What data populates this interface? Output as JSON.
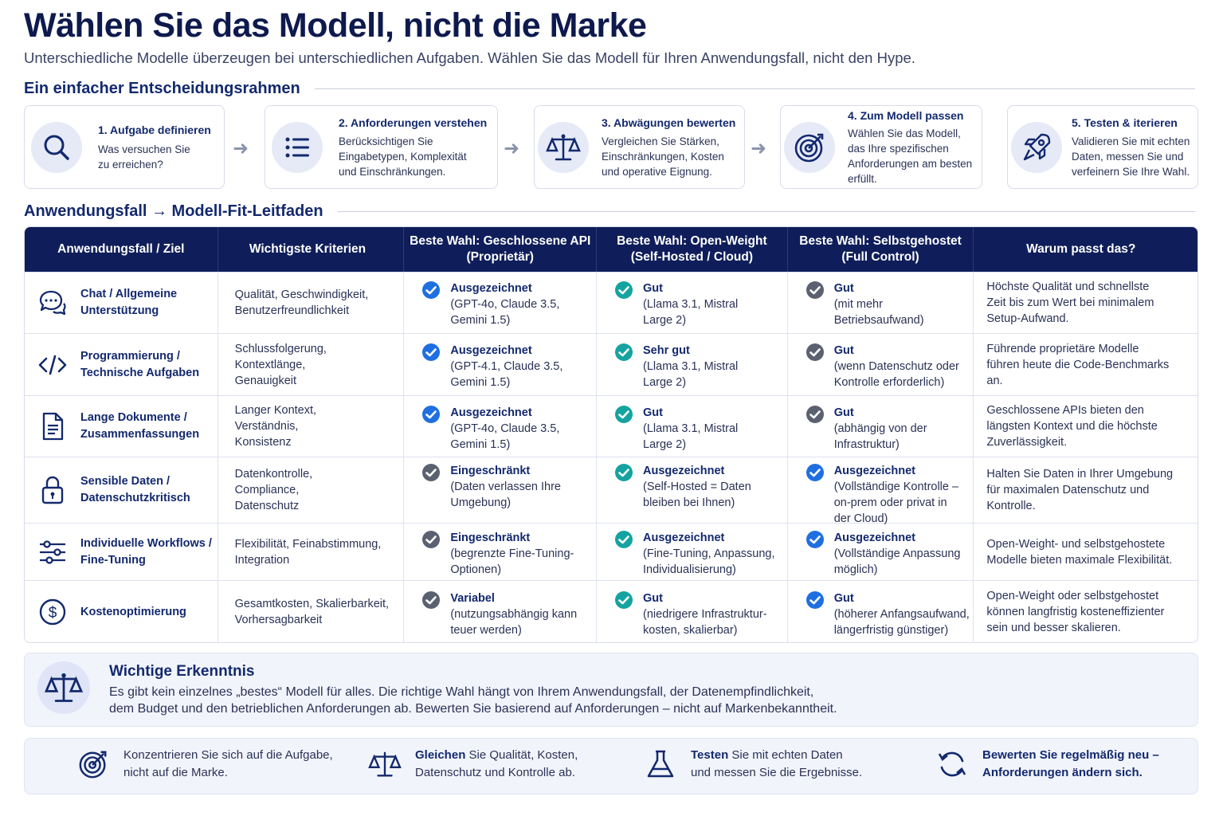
{
  "header": {
    "title": "Wählen Sie das Modell, nicht die Marke",
    "subtitle": "Unterschiedliche Modelle überzeugen bei unterschiedlichen Aufgaben. Wählen Sie das Modell für Ihren Anwendungsfall, nicht den Hype."
  },
  "framework": {
    "heading": "Ein einfacher Entscheidungsrahmen",
    "steps": [
      {
        "title": "1. Aufgabe definieren",
        "l1": "Was versuchen Sie",
        "l2": "zu erreichen?",
        "l3": "",
        "l4": "",
        "icon": "search-icon"
      },
      {
        "title": "2. Anforderungen verstehen",
        "l1": "Berücksichtigen Sie",
        "l2": "Eingabetypen, Komplexität",
        "l3": "und Einschränkungen.",
        "l4": "",
        "icon": "list-icon"
      },
      {
        "title": "3. Abwägungen bewerten",
        "l1": "Vergleichen Sie Stärken,",
        "l2": "Einschränkungen, Kosten",
        "l3": "und operative Eignung.",
        "l4": "",
        "icon": "scale-icon"
      },
      {
        "title": "4. Zum Modell passen",
        "l1": "Wählen Sie das Modell,",
        "l2": "das Ihre spezifischen",
        "l3": "Anforderungen am besten",
        "l4": "erfüllt.",
        "icon": "target-icon"
      },
      {
        "title": "5. Testen & iterieren",
        "l1": "Validieren Sie mit echten",
        "l2": "Daten, messen Sie und",
        "l3": "verfeinern Sie Ihre Wahl.",
        "l4": "",
        "icon": "rocket-icon"
      }
    ]
  },
  "guide": {
    "heading": "Anwendungsfall → Modell-Fit-Leitfaden",
    "columns": [
      {
        "l1": "Anwendungsfall / Ziel",
        "l2": ""
      },
      {
        "l1": "Wichtigste Kriterien",
        "l2": ""
      },
      {
        "l1": "Beste Wahl: Geschlossene API",
        "l2": "(Proprietär)"
      },
      {
        "l1": "Beste Wahl: Open-Weight",
        "l2": "(Self-Hosted / Cloud)"
      },
      {
        "l1": "Beste Wahl: Selbstgehostet",
        "l2": "(Full Control)"
      },
      {
        "l1": "Warum passt das?",
        "l2": ""
      }
    ],
    "rows": [
      {
        "icon": "chat-icon",
        "usecase": [
          "Chat / Allgemeine",
          "Unterstützung"
        ],
        "criteria": [
          "Qualität, Geschwindigkeit,",
          "Benutzerfreundlichkeit",
          ""
        ],
        "closed": {
          "rating": "Ausgezeichnet",
          "d1": "(GPT-4o, Claude 3.5,",
          "d2": "Gemini 1.5)",
          "d3": "",
          "style": "blue"
        },
        "open": {
          "rating": "Gut",
          "d1": "(Llama 3.1, Mistral",
          "d2": "Large 2)",
          "d3": "",
          "style": "teal"
        },
        "self": {
          "rating": "Gut",
          "d1": "(mit mehr",
          "d2": "Betriebsaufwand)",
          "d3": "",
          "style": "gray"
        },
        "why": [
          "Höchste Qualität und schnellste",
          "Zeit bis zum Wert bei minimalem",
          "Setup-Aufwand."
        ]
      },
      {
        "icon": "code-icon",
        "usecase": [
          "Programmierung /",
          "Technische Aufgaben"
        ],
        "criteria": [
          "Schlussfolgerung, Kontextlänge,",
          "Genauigkeit",
          ""
        ],
        "closed": {
          "rating": "Ausgezeichnet",
          "d1": "(GPT-4.1, Claude 3.5,",
          "d2": "Gemini 1.5)",
          "d3": "",
          "style": "blue"
        },
        "open": {
          "rating": "Sehr gut",
          "d1": "(Llama 3.1, Mistral",
          "d2": "Large 2)",
          "d3": "",
          "style": "teal"
        },
        "self": {
          "rating": "Gut",
          "d1": "(wenn Datenschutz oder",
          "d2": "Kontrolle erforderlich)",
          "d3": "",
          "style": "gray"
        },
        "why": [
          "Führende proprietäre Modelle",
          "führen heute die Code-Benchmarks",
          "an."
        ]
      },
      {
        "icon": "document-icon",
        "usecase": [
          "Lange Dokumente /",
          "Zusammenfassungen"
        ],
        "criteria": [
          "Langer Kontext,",
          "Verständnis,",
          "Konsistenz"
        ],
        "closed": {
          "rating": "Ausgezeichnet",
          "d1": "(GPT-4o, Claude 3.5,",
          "d2": "Gemini 1.5)",
          "d3": "",
          "style": "blue"
        },
        "open": {
          "rating": "Gut",
          "d1": "(Llama 3.1, Mistral",
          "d2": "Large 2)",
          "d3": "",
          "style": "teal"
        },
        "self": {
          "rating": "Gut",
          "d1": "(abhängig von der",
          "d2": "Infrastruktur)",
          "d3": "",
          "style": "gray"
        },
        "why": [
          "Geschlossene APIs bieten den",
          "längsten Kontext und die höchste",
          "Zuverlässigkeit."
        ]
      },
      {
        "icon": "lock-icon",
        "usecase": [
          "Sensible Daten /",
          "Datenschutzkritisch"
        ],
        "criteria": [
          "Datenkontrolle,",
          "Compliance,",
          "Datenschutz"
        ],
        "closed": {
          "rating": "Eingeschränkt",
          "d1": "(Daten verlassen Ihre",
          "d2": "Umgebung)",
          "d3": "",
          "style": "gray"
        },
        "open": {
          "rating": "Ausgezeichnet",
          "d1": "(Self-Hosted = Daten",
          "d2": "bleiben bei Ihnen)",
          "d3": "",
          "style": "teal"
        },
        "self": {
          "rating": "Ausgezeichnet",
          "d1": "(Vollständige Kontrolle –",
          "d2": "on-prem oder privat in",
          "d3": "der Cloud)",
          "style": "blue"
        },
        "why": [
          "Halten Sie Daten in Ihrer Umgebung",
          "für maximalen Datenschutz und",
          "Kontrolle."
        ]
      },
      {
        "icon": "sliders-icon",
        "usecase": [
          "Individuelle Workflows /",
          "Fine-Tuning"
        ],
        "criteria": [
          "Flexibilität, Feinabstimmung,",
          "Integration",
          ""
        ],
        "closed": {
          "rating": "Eingeschränkt",
          "d1": "(begrenzte Fine-Tuning-",
          "d2": "Optionen)",
          "d3": "",
          "style": "gray"
        },
        "open": {
          "rating": "Ausgezeichnet",
          "d1": "(Fine-Tuning, Anpassung,",
          "d2": "Individualisierung)",
          "d3": "",
          "style": "teal"
        },
        "self": {
          "rating": "Ausgezeichnet",
          "d1": "(Vollständige Anpassung",
          "d2": "möglich)",
          "d3": "",
          "style": "blue"
        },
        "why": [
          "Open-Weight- und selbstgehostete",
          "Modelle bieten maximale Flexibilität.",
          ""
        ]
      },
      {
        "icon": "dollar-icon",
        "usecase": [
          "Kostenoptimierung",
          ""
        ],
        "criteria": [
          "Gesamtkosten, Skalierbarkeit,",
          "Vorhersagbarkeit",
          ""
        ],
        "closed": {
          "rating": "Variabel",
          "d1": "(nutzungsabhängig kann",
          "d2": "teuer werden)",
          "d3": "",
          "style": "gray"
        },
        "open": {
          "rating": "Gut",
          "d1": "(niedrigere Infrastruktur-",
          "d2": "kosten, skalierbar)",
          "d3": "",
          "style": "teal"
        },
        "self": {
          "rating": "Gut",
          "d1": "(höherer Anfangsaufwand,",
          "d2": "längerfristig günstiger)",
          "d3": "",
          "style": "blue"
        },
        "why": [
          "Open-Weight oder selbstgehostet",
          "können langfristig kosteneffizienter",
          "sein und besser skalieren."
        ]
      }
    ]
  },
  "insight": {
    "title": "Wichtige Erkenntnis",
    "l1": "Es gibt kein einzelnes „bestes“ Modell für alles. Die richtige Wahl hängt von Ihrem Anwendungsfall, der Datenempfindlichkeit,",
    "l2": "dem Budget und den betrieblichen Anforderungen ab. Bewerten Sie basierend auf Anforderungen – nicht auf Markenbekanntheit."
  },
  "tips": [
    {
      "icon": "target-icon",
      "bold1": "",
      "l1": "Konzentrieren Sie sich auf die Aufgabe,",
      "l2": "nicht auf die Marke."
    },
    {
      "icon": "scale-icon",
      "bold1": "Gleichen",
      "l1": " Sie Qualität, Kosten,",
      "l2": "Datenschutz und Kontrolle ab."
    },
    {
      "icon": "flask-icon",
      "bold1": "Testen",
      "l1": " Sie mit echten Daten",
      "l2": "und messen Sie die Ergebnisse."
    },
    {
      "icon": "refresh-icon",
      "bold1": "Bewerten",
      "l1": " Sie regelmäßig neu –",
      "l2": "Anforderungen ändern sich."
    }
  ],
  "colors": {
    "navy": "#0f1e5a",
    "blue_check": "#1f6fe0",
    "teal_check": "#14a3a0",
    "gray_check": "#5b6170"
  }
}
